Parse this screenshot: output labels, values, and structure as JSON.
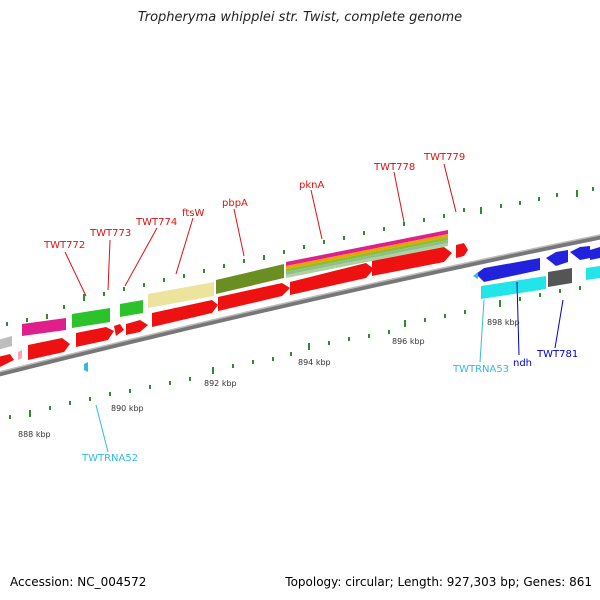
{
  "title": "Tropheryma whipplei str. Twist, complete genome",
  "footer": {
    "accession": "Accession: NC_004572",
    "topology": "Topology: circular; Length: 927,303 bp; Genes: 861"
  },
  "colors": {
    "backbone": "#8a8a8a",
    "tick": "#2e8b2e",
    "label_red": "#dd1111",
    "label_blue": "#0000cc",
    "label_cyan": "#33bbdd"
  },
  "scale_labels": [
    "888 kbp",
    "890 kbp",
    "892 kbp",
    "894 kbp",
    "896 kbp",
    "898 kbp"
  ],
  "gene_labels": [
    {
      "id": "TWT772",
      "text": "TWT772",
      "color": "#dd1111"
    },
    {
      "id": "TWT773",
      "text": "TWT773",
      "color": "#dd1111"
    },
    {
      "id": "TWT774",
      "text": "TWT774",
      "color": "#dd1111"
    },
    {
      "id": "ftsW",
      "text": "ftsW",
      "color": "#dd1111"
    },
    {
      "id": "pbpA",
      "text": "pbpA",
      "color": "#dd1111"
    },
    {
      "id": "pknA",
      "text": "pknA",
      "color": "#dd1111"
    },
    {
      "id": "TWT778",
      "text": "TWT778",
      "color": "#dd1111"
    },
    {
      "id": "TWT779",
      "text": "TWT779",
      "color": "#dd1111"
    },
    {
      "id": "TWTRNA52",
      "text": "TWTRNA52",
      "color": "#33bbdd"
    },
    {
      "id": "TWTRNA53",
      "text": "TWTRNA53",
      "color": "#33bbdd"
    },
    {
      "id": "ndh",
      "text": "ndh",
      "color": "#0000cc"
    },
    {
      "id": "TWT781",
      "text": "TWT781",
      "color": "#0000cc"
    }
  ]
}
